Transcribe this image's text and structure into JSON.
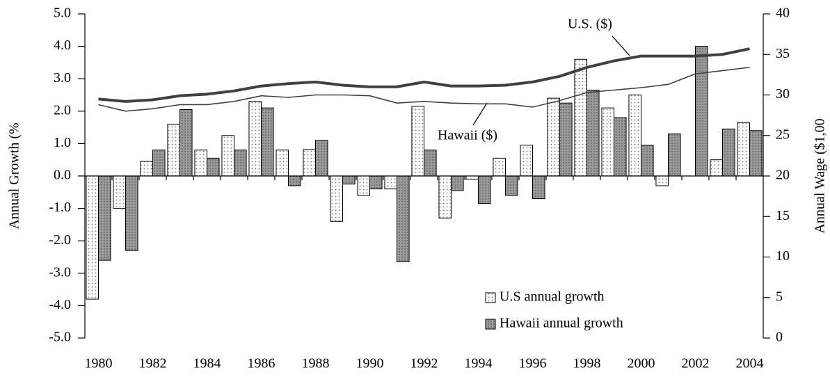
{
  "chart_data": {
    "type": "bar",
    "categories": [
      "1980",
      null,
      "1982",
      null,
      "1984",
      null,
      "1986",
      null,
      "1988",
      null,
      "1990",
      null,
      "1992",
      null,
      "1994",
      null,
      "1996",
      null,
      "1998",
      null,
      "2000",
      null,
      "2002",
      null,
      "2004"
    ],
    "series": [
      {
        "name": "U.S annual growth",
        "color": "#f2f2f2",
        "values": [
          -3.8,
          -1.0,
          0.45,
          1.6,
          0.8,
          1.25,
          2.3,
          0.8,
          0.82,
          -1.4,
          -0.6,
          -0.4,
          2.15,
          -1.3,
          -0.1,
          0.55,
          0.95,
          2.4,
          3.6,
          2.1,
          2.5,
          -0.3,
          0,
          0.5,
          1.65
        ]
      },
      {
        "name": "Hawaii annual growth",
        "color": "#9a9a9a",
        "values": [
          -2.6,
          -2.3,
          0.8,
          2.05,
          0.55,
          0.8,
          2.1,
          -0.3,
          1.1,
          -0.25,
          -0.4,
          -2.65,
          0.8,
          -0.45,
          -0.85,
          -0.6,
          -0.7,
          2.25,
          2.65,
          1.8,
          0.95,
          1.3,
          4.0,
          1.45,
          1.4
        ]
      },
      {
        "type": "line",
        "axis": "y2",
        "color": "#404040",
        "values": [
          29.5,
          29.2,
          29.4,
          29.9,
          30.1,
          30.5,
          31.1,
          31.4,
          31.6,
          31.2,
          31.0,
          31.0,
          31.6,
          31.1,
          31.1,
          31.2,
          31.6,
          32.3,
          33.4,
          34.2,
          34.8,
          34.8,
          34.8,
          35.0,
          35.7
        ]
      },
      {
        "type": "line",
        "axis": "y2",
        "color": "#404040",
        "values": [
          28.8,
          28.0,
          28.3,
          28.8,
          28.8,
          29.2,
          29.9,
          29.7,
          30.0,
          30.0,
          29.9,
          29.0,
          29.2,
          29.0,
          28.9,
          28.9,
          28.5,
          29.3,
          30.3,
          30.6,
          30.9,
          31.3,
          32.6,
          33.0,
          33.4
        ]
      }
    ],
    "annotations": [
      "U.S. ($)",
      "Hawaii ($)"
    ],
    "ylabel": "Annual Growth (%",
    "y2label": "Annual Wage ($1,00",
    "ylim": [
      -5,
      5
    ],
    "yticks": [
      {
        "value": 5,
        "label": "5.0"
      },
      {
        "value": 4,
        "label": "4.0"
      },
      {
        "value": 3,
        "label": "3.0"
      },
      {
        "value": 2,
        "label": "2.0"
      },
      {
        "value": 1,
        "label": "1.0"
      },
      {
        "value": 0,
        "label": "0.0"
      },
      {
        "value": -1,
        "label": "-1.0"
      },
      {
        "value": -2,
        "label": "-2.0"
      },
      {
        "value": -3,
        "label": "-3.0"
      },
      {
        "value": -4,
        "label": "-4.0"
      },
      {
        "value": -5,
        "label": "-5.0"
      }
    ],
    "y2lim": [
      0,
      40
    ],
    "y2ticks": [
      0,
      5,
      10,
      15,
      20,
      25,
      30,
      35,
      40
    ],
    "legend": "lower right"
  }
}
